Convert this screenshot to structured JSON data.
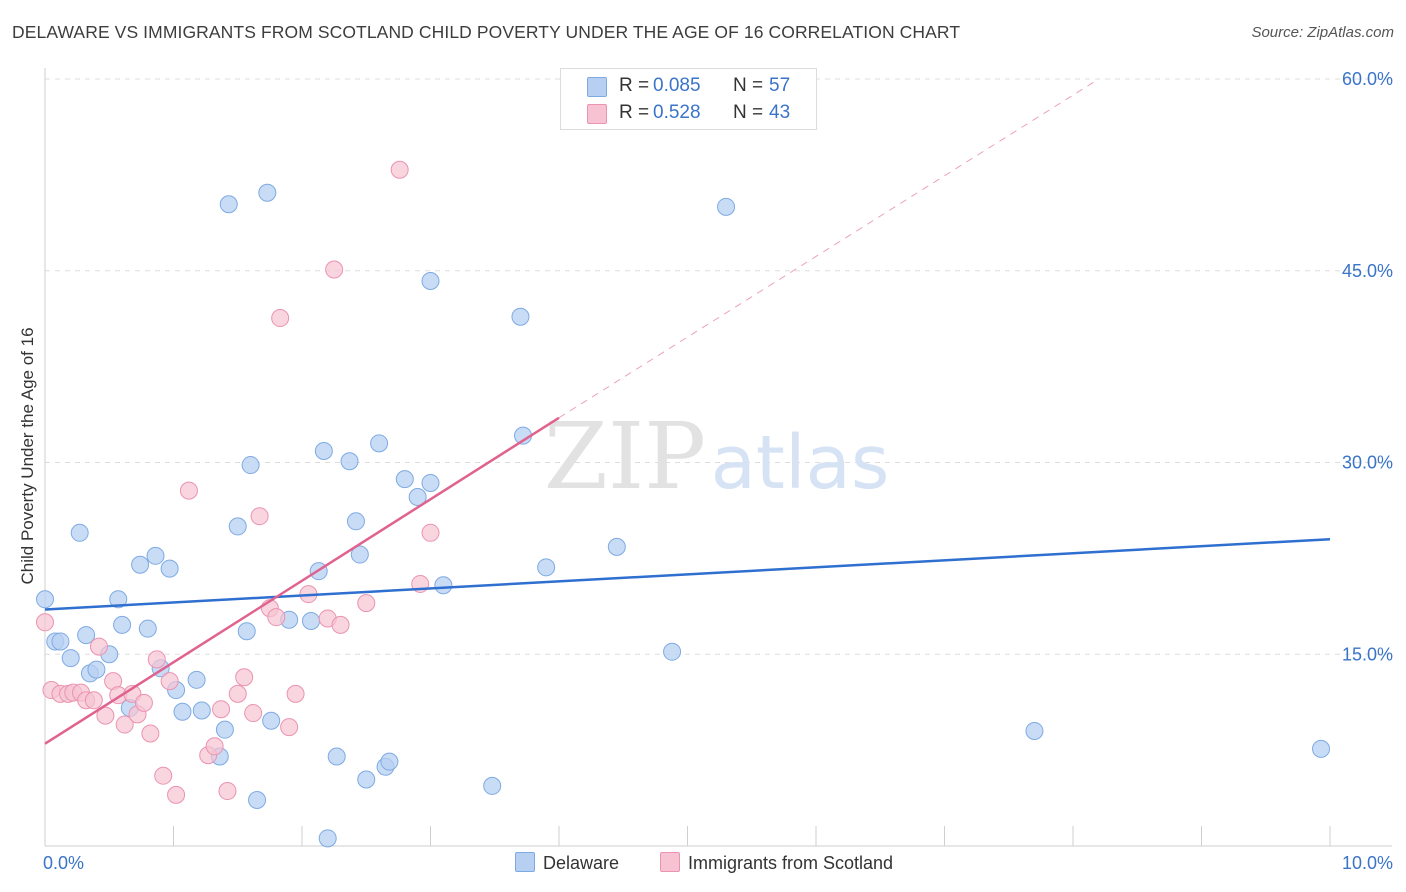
{
  "title": "DELAWARE VS IMMIGRANTS FROM SCOTLAND CHILD POVERTY UNDER THE AGE OF 16 CORRELATION CHART",
  "source": "Source: ZipAtlas.com",
  "watermark": {
    "zip": "ZIP",
    "atlas": "atlas"
  },
  "colors": {
    "blue_fill": "#b7d0f2",
    "blue_stroke": "#7eaae3",
    "blue_line": "#2e6fcf",
    "pink_fill": "#f7c3d3",
    "pink_stroke": "#eb93b0",
    "pink_line": "#e0628f",
    "axis_label": "#3a74c9",
    "grid": "#dddddd"
  },
  "legend": {
    "rows": [
      {
        "r_label": "R =",
        "r_value": "0.085",
        "n_label": "N =",
        "n_value": "57"
      },
      {
        "r_label": "R =",
        "r_value": "0.528",
        "n_label": "N =",
        "n_value": "43"
      }
    ]
  },
  "chart_data": {
    "type": "scatter",
    "title": "DELAWARE VS IMMIGRANTS FROM SCOTLAND CHILD POVERTY UNDER THE AGE OF 16 CORRELATION CHART",
    "xlabel": "",
    "ylabel": "Child Poverty Under the Age of 16",
    "xlim": [
      0,
      10
    ],
    "ylim": [
      0,
      60
    ],
    "x_tick_labels": [
      "0.0%",
      "10.0%"
    ],
    "y_tick_values": [
      15,
      30,
      45,
      60
    ],
    "y_tick_labels": [
      "15.0%",
      "30.0%",
      "45.0%",
      "60.0%"
    ],
    "grid": true,
    "legend_position": "top-center",
    "series": [
      {
        "name": "Delaware",
        "r": 0.085,
        "n": 57,
        "trend": {
          "x": [
            0,
            10
          ],
          "y": [
            18.5,
            24.0
          ],
          "dashed_extension": false
        },
        "points": [
          [
            0.0,
            19.3
          ],
          [
            0.08,
            16.0
          ],
          [
            0.12,
            16.0
          ],
          [
            0.2,
            14.7
          ],
          [
            0.27,
            24.5
          ],
          [
            0.32,
            16.5
          ],
          [
            0.35,
            13.5
          ],
          [
            0.4,
            13.8
          ],
          [
            0.5,
            15.0
          ],
          [
            0.57,
            19.3
          ],
          [
            0.6,
            17.3
          ],
          [
            0.66,
            10.8
          ],
          [
            0.74,
            22.0
          ],
          [
            0.8,
            17.0
          ],
          [
            0.86,
            22.7
          ],
          [
            0.9,
            13.9
          ],
          [
            0.97,
            21.7
          ],
          [
            1.02,
            12.2
          ],
          [
            1.07,
            10.5
          ],
          [
            1.18,
            13.0
          ],
          [
            1.22,
            10.6
          ],
          [
            1.36,
            7.0
          ],
          [
            1.4,
            9.1
          ],
          [
            1.43,
            50.2
          ],
          [
            1.5,
            25.0
          ],
          [
            1.57,
            16.8
          ],
          [
            1.6,
            29.8
          ],
          [
            1.65,
            3.6
          ],
          [
            1.73,
            51.1
          ],
          [
            1.76,
            9.8
          ],
          [
            1.9,
            17.7
          ],
          [
            2.07,
            17.6
          ],
          [
            2.13,
            21.5
          ],
          [
            2.17,
            30.9
          ],
          [
            2.2,
            0.6
          ],
          [
            2.27,
            7.0
          ],
          [
            2.37,
            30.1
          ],
          [
            2.42,
            25.4
          ],
          [
            2.45,
            22.8
          ],
          [
            2.5,
            5.2
          ],
          [
            2.6,
            31.5
          ],
          [
            2.65,
            6.2
          ],
          [
            2.68,
            6.6
          ],
          [
            2.8,
            28.7
          ],
          [
            2.9,
            27.3
          ],
          [
            3.0,
            28.4
          ],
          [
            3.0,
            44.2
          ],
          [
            3.1,
            20.4
          ],
          [
            3.48,
            4.7
          ],
          [
            3.7,
            41.4
          ],
          [
            3.72,
            32.1
          ],
          [
            3.9,
            21.8
          ],
          [
            4.45,
            23.4
          ],
          [
            4.88,
            15.2
          ],
          [
            5.3,
            50.0
          ],
          [
            7.7,
            9.0
          ],
          [
            9.93,
            7.6
          ]
        ]
      },
      {
        "name": "Immigrants from Scotland",
        "r": 0.528,
        "n": 43,
        "trend": {
          "x": [
            0,
            4.0
          ],
          "y": [
            8.0,
            33.5
          ],
          "dashed_extension_to": [
            8.2,
            60.0
          ]
        },
        "points": [
          [
            0.0,
            17.5
          ],
          [
            0.05,
            12.2
          ],
          [
            0.12,
            11.9
          ],
          [
            0.18,
            11.9
          ],
          [
            0.22,
            12.0
          ],
          [
            0.28,
            12.0
          ],
          [
            0.32,
            11.4
          ],
          [
            0.38,
            11.4
          ],
          [
            0.42,
            15.6
          ],
          [
            0.47,
            10.2
          ],
          [
            0.53,
            12.9
          ],
          [
            0.57,
            11.8
          ],
          [
            0.62,
            9.5
          ],
          [
            0.68,
            11.9
          ],
          [
            0.72,
            10.3
          ],
          [
            0.77,
            11.2
          ],
          [
            0.82,
            8.8
          ],
          [
            0.87,
            14.6
          ],
          [
            0.92,
            5.5
          ],
          [
            0.97,
            12.9
          ],
          [
            1.02,
            4.0
          ],
          [
            1.12,
            27.8
          ],
          [
            1.27,
            7.1
          ],
          [
            1.32,
            7.8
          ],
          [
            1.37,
            10.7
          ],
          [
            1.42,
            4.3
          ],
          [
            1.5,
            11.9
          ],
          [
            1.55,
            13.2
          ],
          [
            1.62,
            10.4
          ],
          [
            1.67,
            25.8
          ],
          [
            1.75,
            18.6
          ],
          [
            1.8,
            17.9
          ],
          [
            1.83,
            41.3
          ],
          [
            1.9,
            9.3
          ],
          [
            1.95,
            11.9
          ],
          [
            2.05,
            19.7
          ],
          [
            2.2,
            17.8
          ],
          [
            2.25,
            45.1
          ],
          [
            2.3,
            17.3
          ],
          [
            2.5,
            19.0
          ],
          [
            2.76,
            52.9
          ],
          [
            2.92,
            20.5
          ],
          [
            3.0,
            24.5
          ]
        ]
      }
    ]
  }
}
